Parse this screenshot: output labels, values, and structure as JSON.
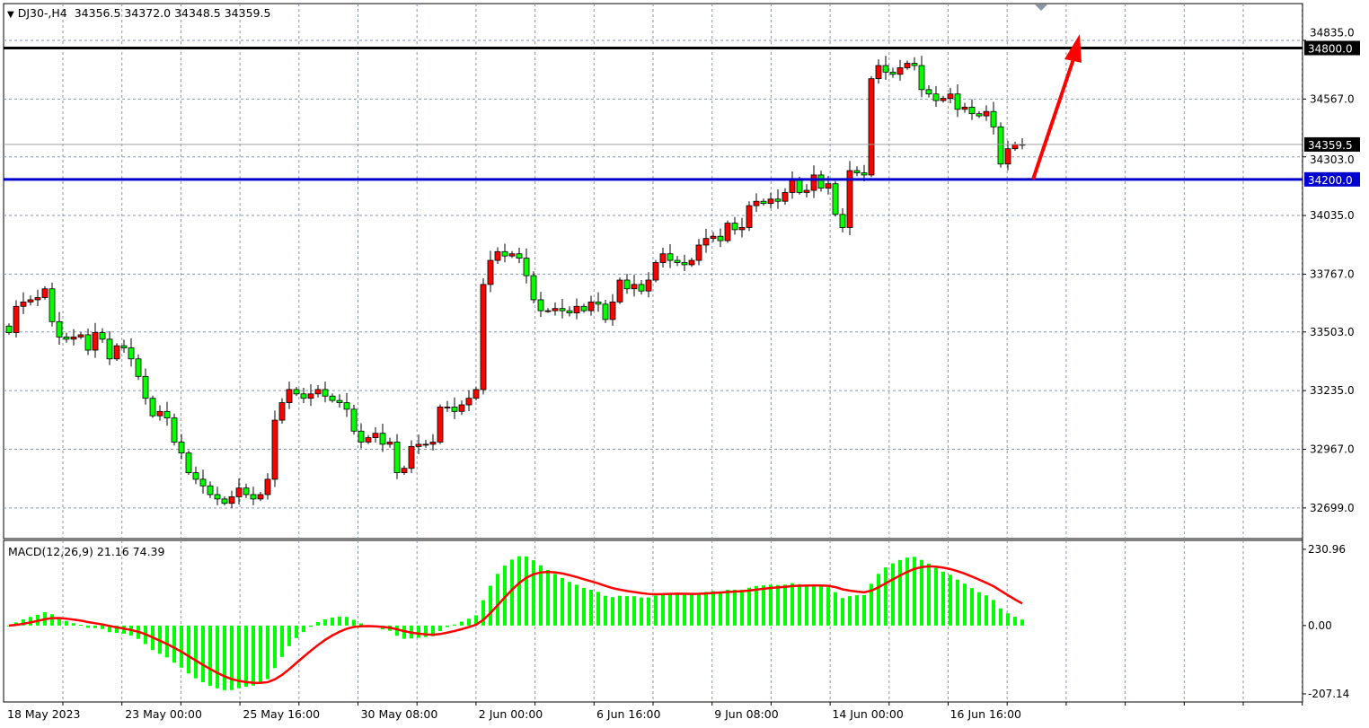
{
  "header": {
    "symbol": "DJ30-,H4",
    "ohlc": "34356.5 34372.0 34348.5 34359.5"
  },
  "colors": {
    "bull": "#ff0000",
    "bear": "#00ff00",
    "resistance": "#000000",
    "support": "#0000cc",
    "arrow": "#ff0000",
    "macd_hist": "#00ff00",
    "macd_signal": "#ff0000"
  },
  "chart_data": [
    {
      "type": "candlestick",
      "title": "DJ30-,H4",
      "ylim": [
        32559,
        35003
      ],
      "grid": true,
      "price_ticks": [
        "34835.0",
        "34567.0",
        "34303.0",
        "34035.0",
        "33767.0",
        "33503.0",
        "33235.0",
        "32967.0",
        "32699.0"
      ],
      "time_labels": [
        "18 May 2023",
        "23 May 00:00",
        "25 May 16:00",
        "30 May 08:00",
        "2 Jun 00:00",
        "6 Jun 16:00",
        "9 Jun 08:00",
        "14 Jun 00:00",
        "16 Jun 16:00"
      ],
      "close": [
        33500,
        33620,
        33640,
        33650,
        33660,
        33700,
        33550,
        33480,
        33470,
        33480,
        33490,
        33420,
        33500,
        33470,
        33380,
        33440,
        33430,
        33380,
        33300,
        33200,
        33120,
        33140,
        33110,
        33000,
        32950,
        32860,
        32830,
        32800,
        32760,
        32740,
        32720,
        32750,
        32790,
        32760,
        32740,
        32760,
        32830,
        33100,
        33180,
        33240,
        33220,
        33200,
        33220,
        33240,
        33210,
        33190,
        33180,
        33150,
        33050,
        33000,
        33020,
        33040,
        32990,
        33000,
        32860,
        32880,
        32980,
        32990,
        32990,
        33000,
        33160,
        33160,
        33140,
        33170,
        33200,
        33240,
        33720,
        33830,
        33870,
        33850,
        33860,
        33840,
        33760,
        33650,
        33600,
        33600,
        33610,
        33600,
        33590,
        33620,
        33600,
        33640,
        33630,
        33560,
        33640,
        33740,
        33700,
        33720,
        33690,
        33740,
        33820,
        33860,
        33830,
        33820,
        33810,
        33830,
        33900,
        33930,
        33940,
        33920,
        34000,
        33970,
        33980,
        34080,
        34100,
        34090,
        34110,
        34100,
        34140,
        34200,
        34140,
        34150,
        34220,
        34160,
        34180,
        34040,
        33980,
        34240,
        34230,
        34220,
        34660,
        34720,
        34690,
        34680,
        34710,
        34730,
        34720,
        34610,
        34590,
        34560,
        34570,
        34590,
        34520,
        34530,
        34500,
        34490,
        34510,
        34440,
        34270,
        34340,
        34360,
        34359.5
      ],
      "horizontal_lines": [
        {
          "price": 34800.0,
          "label": "34800.0",
          "color": "#000000"
        },
        {
          "price": 34200.0,
          "label": "34200.0",
          "color": "#0000cc"
        },
        {
          "price": 34359.5,
          "label": "34359.5",
          "color": "#a0a0a0"
        }
      ],
      "arrow": {
        "from": {
          "bar": 142.5,
          "price": 34200
        },
        "to": {
          "bar": 149,
          "price": 34864
        }
      }
    },
    {
      "type": "macd",
      "label": "MACD(12,26,9) 21.16 74.39",
      "params": [
        12,
        26,
        9
      ],
      "ylim": [
        -231.6,
        258
      ],
      "ticks": [
        "230.96",
        "0.00",
        "-207.14"
      ]
    }
  ]
}
